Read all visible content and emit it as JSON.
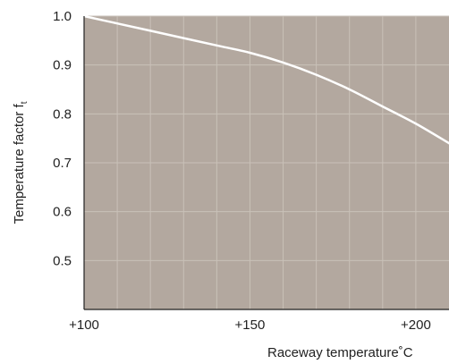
{
  "chart_data": {
    "type": "line",
    "title": "",
    "xlabel": "Raceway temperature˚C",
    "ylabel": "Temperature factor  f",
    "ylabel_subscript": "t",
    "xlim": [
      100,
      210
    ],
    "ylim": [
      0.4,
      1.0
    ],
    "x_ticks": [
      100,
      150,
      200
    ],
    "x_tick_labels": [
      "+100",
      "+150",
      "+200"
    ],
    "y_ticks": [
      0.5,
      0.6,
      0.7,
      0.8,
      0.9,
      1.0
    ],
    "y_tick_labels": [
      "0.5",
      "0.6",
      "0.7",
      "0.8",
      "0.9",
      "1.0"
    ],
    "grid": true,
    "colors": {
      "plot_background": "#b3a89f",
      "grid": "#c9c1b8",
      "line": "#ffffff",
      "axis": "#222222"
    },
    "series": [
      {
        "x": [
          100,
          110,
          120,
          130,
          140,
          150,
          160,
          170,
          180,
          190,
          200,
          210
        ],
        "y": [
          1.0,
          0.985,
          0.97,
          0.955,
          0.94,
          0.925,
          0.905,
          0.88,
          0.85,
          0.815,
          0.78,
          0.74
        ]
      }
    ]
  }
}
